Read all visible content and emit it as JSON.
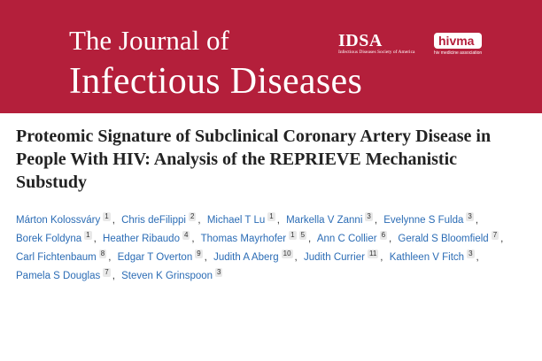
{
  "header": {
    "journal_line1": "The Journal of",
    "journal_line2": "Infectious Diseases",
    "logos": [
      {
        "text": "IDSA",
        "caption": "Infectious Diseases Society of America"
      },
      {
        "text": "hivma",
        "caption": "hiv medicine association"
      }
    ]
  },
  "article": {
    "title": "Proteomic Signature of Subclinical Coronary Artery Disease in People With HIV: Analysis of the REPRIEVE Mechanistic Substudy",
    "author_separator": ",",
    "authors": [
      {
        "name": "Márton Kolossváry",
        "affiliations": [
          1
        ]
      },
      {
        "name": "Chris deFilippi",
        "affiliations": [
          2
        ]
      },
      {
        "name": "Michael T Lu",
        "affiliations": [
          1
        ]
      },
      {
        "name": "Markella V Zanni",
        "affiliations": [
          3
        ]
      },
      {
        "name": "Evelynne S Fulda",
        "affiliations": [
          3
        ]
      },
      {
        "name": "Borek Foldyna",
        "affiliations": [
          1
        ]
      },
      {
        "name": "Heather Ribaudo",
        "affiliations": [
          4
        ]
      },
      {
        "name": "Thomas Mayrhofer",
        "affiliations": [
          1,
          5
        ]
      },
      {
        "name": "Ann C Collier",
        "affiliations": [
          6
        ]
      },
      {
        "name": "Gerald S Bloomfield",
        "affiliations": [
          7
        ]
      },
      {
        "name": "Carl Fichtenbaum",
        "affiliations": [
          8
        ]
      },
      {
        "name": "Edgar T Overton",
        "affiliations": [
          9
        ]
      },
      {
        "name": "Judith A Aberg",
        "affiliations": [
          10
        ]
      },
      {
        "name": "Judith Currier",
        "affiliations": [
          11
        ]
      },
      {
        "name": "Kathleen V Fitch",
        "affiliations": [
          3
        ]
      },
      {
        "name": "Pamela S Douglas",
        "affiliations": [
          7
        ]
      },
      {
        "name": "Steven K Grinspoon",
        "affiliations": [
          3
        ]
      }
    ]
  }
}
